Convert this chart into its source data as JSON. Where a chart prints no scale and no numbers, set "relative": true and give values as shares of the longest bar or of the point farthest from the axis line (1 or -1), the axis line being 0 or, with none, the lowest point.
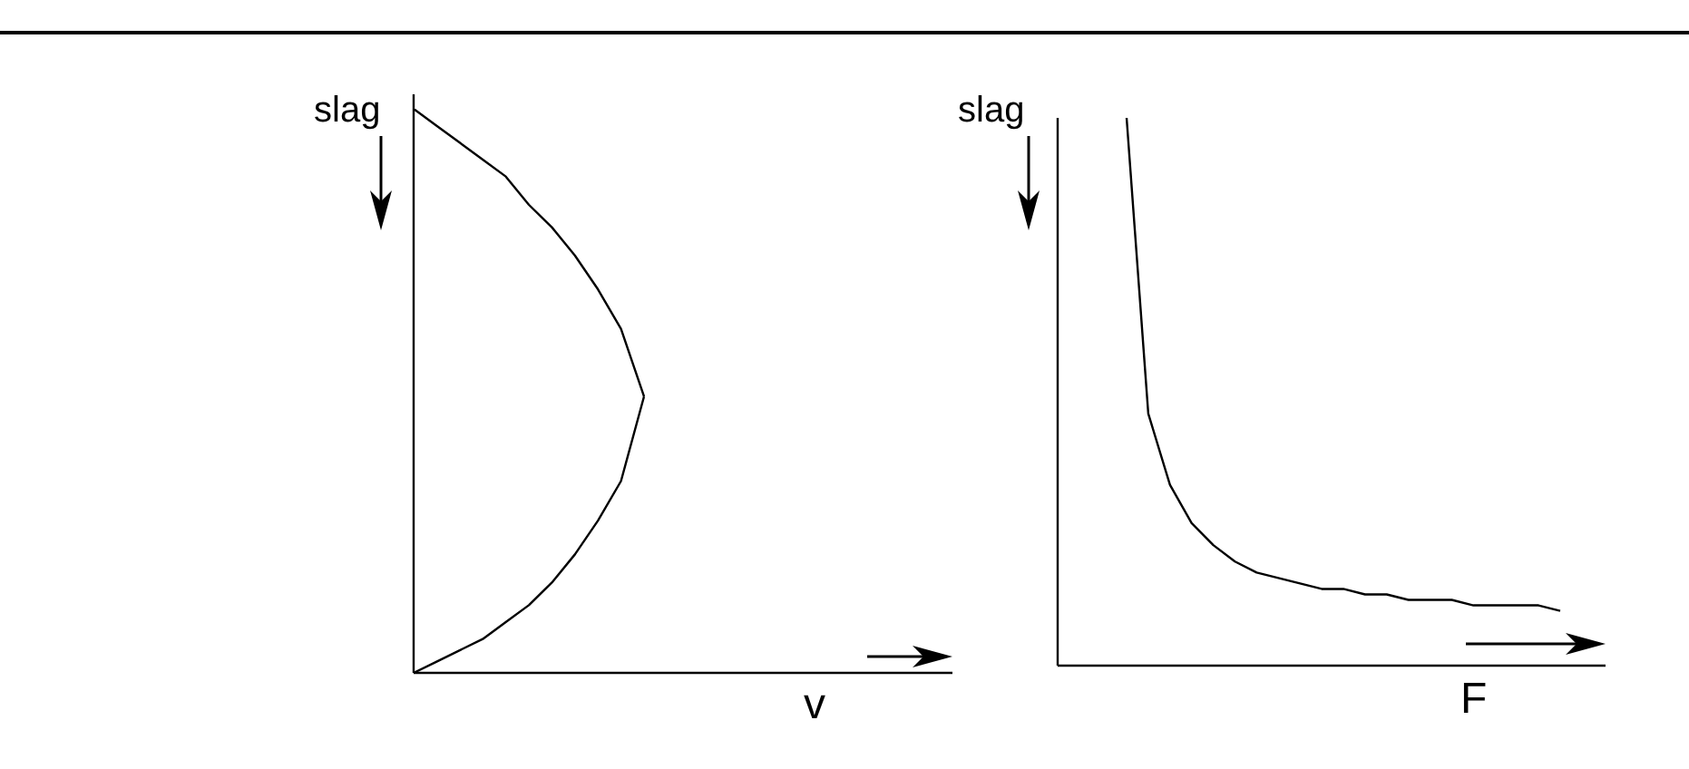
{
  "chart_data": [
    {
      "type": "line",
      "relative": true,
      "xlabel": "v",
      "ylabel": "slag",
      "grid": false,
      "legend": false,
      "marker": "none",
      "categories": [
        null,
        null,
        null,
        null,
        null,
        null,
        null,
        null,
        null,
        null,
        null
      ],
      "series": [
        {
          "color": "#000000",
          "values": [
            1,
            0.97,
            0.94,
            0.91,
            0.88,
            0.83,
            0.79,
            0.74,
            0.68,
            0.61,
            0.49
          ]
        },
        {
          "color": "#000000",
          "values": [
            0,
            0.02,
            0.04,
            0.06,
            0.09,
            0.12,
            0.16,
            0.21,
            0.27,
            0.34,
            0.49
          ]
        }
      ]
    },
    {
      "type": "line",
      "relative": true,
      "xlabel": "F",
      "ylabel": "slag",
      "grid": false,
      "legend": false,
      "marker": "none",
      "categories": [
        null,
        null,
        null,
        null,
        null,
        null,
        null,
        null,
        null,
        null,
        null,
        null,
        null,
        null,
        null,
        null,
        null,
        null,
        null,
        null,
        null
      ],
      "series": [
        {
          "color": "#000000",
          "values": [
            1,
            0.46,
            0.33,
            0.26,
            0.22,
            0.19,
            0.17,
            0.16,
            0.15,
            0.14,
            0.14,
            0.13,
            0.13,
            0.12,
            0.12,
            0.12,
            0.11,
            0.11,
            0.11,
            0.11,
            0.1
          ]
        }
      ]
    }
  ]
}
